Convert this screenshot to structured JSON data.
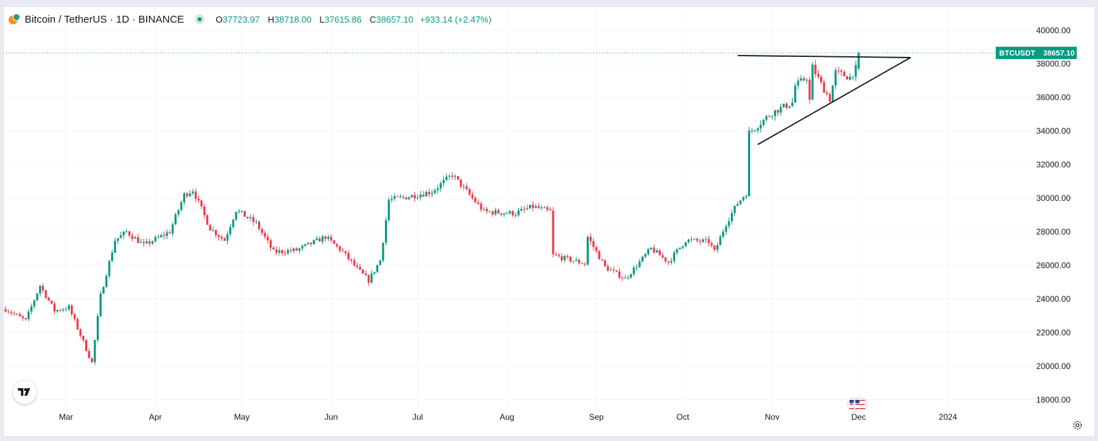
{
  "header": {
    "title": "Bitcoin / TetherUS · 1D · BINANCE",
    "open_label": "O",
    "open_value": "37723.97",
    "high_label": "H",
    "high_value": "38718.00",
    "low_label": "L",
    "low_value": "37615.86",
    "close_label": "C",
    "close_value": "38657.10",
    "change": "+933.14 (+2.47%)"
  },
  "price_label": {
    "symbol": "BTCUSDT",
    "value": "38657.10"
  },
  "colors": {
    "up": "#089981",
    "down": "#f23645",
    "line": "#131722",
    "grid": "#f0f3fa",
    "text": "#131722"
  },
  "icons": [
    "bitcoin-tether-logo",
    "market-status-dot",
    "tradingview-logo",
    "us-flag-event-icon",
    "settings-gear-icon"
  ],
  "chart_data": {
    "type": "candlestick",
    "y_ticks": [
      "40000.00",
      "38000.00",
      "36000.00",
      "34000.00",
      "32000.00",
      "30000.00",
      "28000.00",
      "26000.00",
      "24000.00",
      "22000.00",
      "20000.00",
      "18000.00"
    ],
    "ylim": [
      17500,
      41400
    ],
    "x_ticks": [
      "Mar",
      "Apr",
      "May",
      "Jun",
      "Jul",
      "Aug",
      "Sep",
      "Oct",
      "Nov",
      "Dec",
      "2024"
    ],
    "x_tick_dates": [
      "2023-03-01",
      "2023-04-01",
      "2023-05-01",
      "2023-06-01",
      "2023-07-01",
      "2023-08-01",
      "2023-09-01",
      "2023-10-01",
      "2023-11-01",
      "2023-12-01",
      "2024-01-01"
    ],
    "last_price": 38657.1,
    "anchors": [
      [
        "2023-02-08",
        23400
      ],
      [
        "2023-02-15",
        22700
      ],
      [
        "2023-02-20",
        24800
      ],
      [
        "2023-02-25",
        23300
      ],
      [
        "2023-03-02",
        23500
      ],
      [
        "2023-03-10",
        20200
      ],
      [
        "2023-03-13",
        24200
      ],
      [
        "2023-03-18",
        27500
      ],
      [
        "2023-03-22",
        28000
      ],
      [
        "2023-03-28",
        27200
      ],
      [
        "2023-04-06",
        28000
      ],
      [
        "2023-04-11",
        30200
      ],
      [
        "2023-04-14",
        30500
      ],
      [
        "2023-04-20",
        28200
      ],
      [
        "2023-04-25",
        27500
      ],
      [
        "2023-04-29",
        29300
      ],
      [
        "2023-05-06",
        28500
      ],
      [
        "2023-05-12",
        26800
      ],
      [
        "2023-05-20",
        26900
      ],
      [
        "2023-05-30",
        27700
      ],
      [
        "2023-06-05",
        26800
      ],
      [
        "2023-06-10",
        25800
      ],
      [
        "2023-06-14",
        25100
      ],
      [
        "2023-06-18",
        26300
      ],
      [
        "2023-06-21",
        29900
      ],
      [
        "2023-06-28",
        30100
      ],
      [
        "2023-07-06",
        30400
      ],
      [
        "2023-07-13",
        31400
      ],
      [
        "2023-07-24",
        29200
      ],
      [
        "2023-08-04",
        29100
      ],
      [
        "2023-08-10",
        29500
      ],
      [
        "2023-08-16",
        29200
      ],
      [
        "2023-08-17",
        26600
      ],
      [
        "2023-08-28",
        26100
      ],
      [
        "2023-08-29",
        27700
      ],
      [
        "2023-09-04",
        25900
      ],
      [
        "2023-09-11",
        25200
      ],
      [
        "2023-09-20",
        27000
      ],
      [
        "2023-09-26",
        26200
      ],
      [
        "2023-10-02",
        27500
      ],
      [
        "2023-10-10",
        27400
      ],
      [
        "2023-10-12",
        26800
      ],
      [
        "2023-10-16",
        28500
      ],
      [
        "2023-10-20",
        29700
      ],
      [
        "2023-10-23",
        30300
      ],
      [
        "2023-10-24",
        33900
      ],
      [
        "2023-11-01",
        35100
      ],
      [
        "2023-11-08",
        35700
      ],
      [
        "2023-11-09",
        36700
      ],
      [
        "2023-11-13",
        37200
      ],
      [
        "2023-11-14",
        35800
      ],
      [
        "2023-11-15",
        37800
      ],
      [
        "2023-11-18",
        36800
      ],
      [
        "2023-11-21",
        35900
      ],
      [
        "2023-11-23",
        37500
      ],
      [
        "2023-11-28",
        37200
      ],
      [
        "2023-11-30",
        37723.97
      ],
      [
        "2023-12-01",
        38657.1
      ]
    ],
    "trendlines": [
      {
        "name": "resistance",
        "from": [
          "2023-10-20",
          38500
        ],
        "to": [
          "2023-12-19",
          38380
        ]
      },
      {
        "name": "support",
        "from": [
          "2023-10-27",
          33200
        ],
        "to": [
          "2023-12-19",
          38380
        ]
      }
    ],
    "event_markers": [
      {
        "date": "2023-11-30",
        "icon": "us-flag-event-icon"
      },
      {
        "date": "2023-12-02",
        "icon": "us-flag-event-icon"
      }
    ]
  }
}
